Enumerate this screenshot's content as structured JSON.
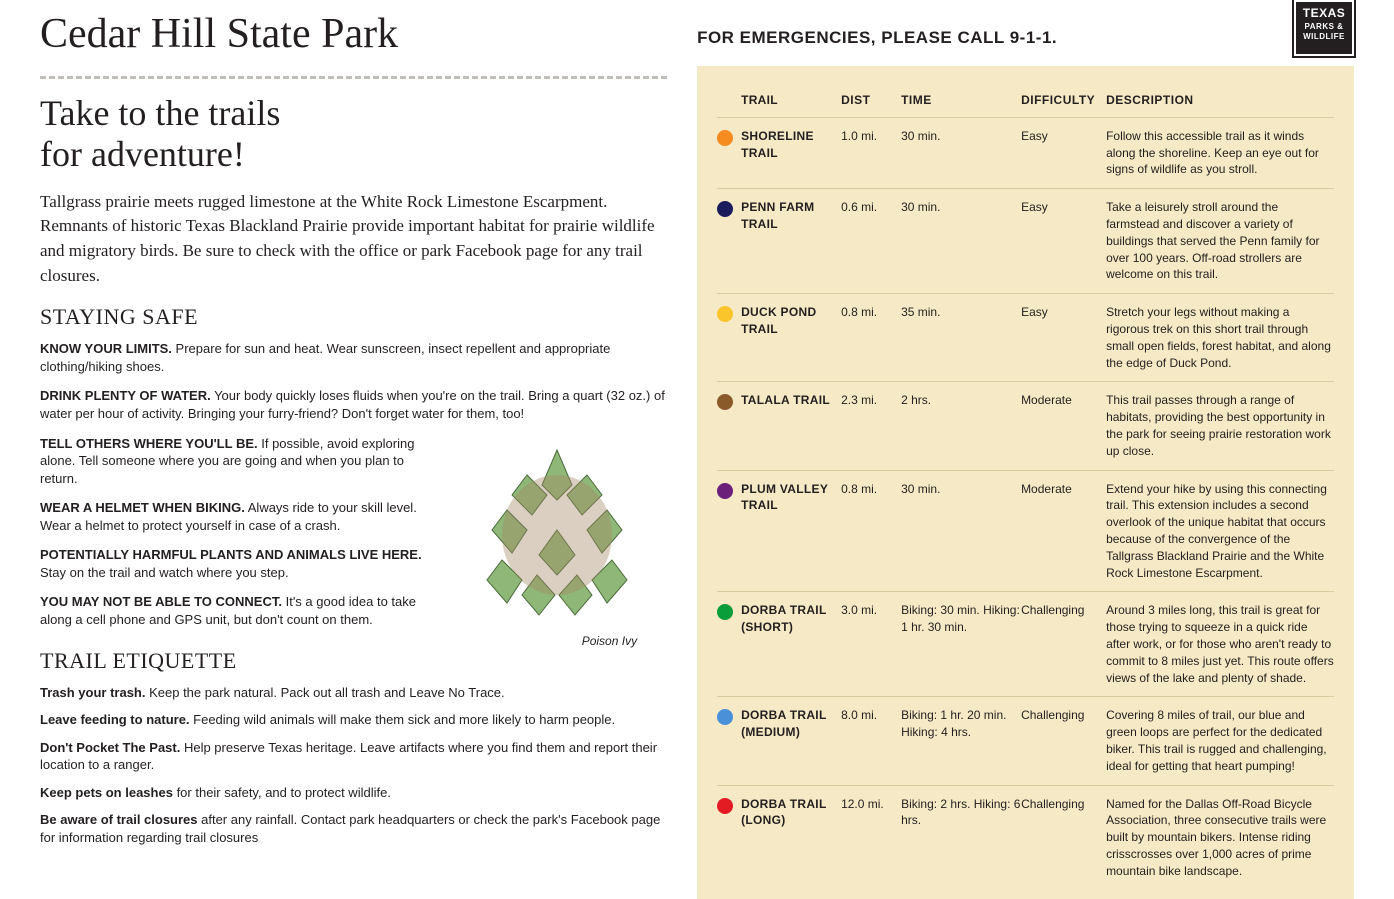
{
  "logo": {
    "line1": "TEXAS",
    "line2": "PARKS &",
    "line3": "WILDLIFE"
  },
  "park_title": "Cedar Hill State Park",
  "subtitle_line1": "Take to the trails",
  "subtitle_line2": "for adventure!",
  "intro": "Tallgrass prairie meets rugged limestone at the White Rock Limestone Escarpment. Remnants of historic Texas Blackland Prairie provide important habitat for prairie wildlife and migratory birds. Be sure to check with the office or park Facebook page for any trail closures.",
  "staying_safe_heading": "STAYING SAFE",
  "safety_items": [
    {
      "lead": "KNOW YOUR LIMITS.",
      "body": "  Prepare for sun and heat. Wear sunscreen, insect repellent and appropriate clothing/hiking shoes."
    },
    {
      "lead": "DRINK PLENTY OF WATER.",
      "body": "  Your body quickly loses fluids when you're on the trail. Bring a quart (32 oz.) of water per hour of activity. Bringing your furry-friend? Don't forget water for them, too!"
    },
    {
      "lead": "TELL OTHERS WHERE YOU'LL BE.",
      "body": "  If possible, avoid exploring alone. Tell someone where you are going and when you plan to return."
    },
    {
      "lead": "WEAR A HELMET WHEN BIKING.",
      "body": " Always ride to your skill level. Wear a helmet to protect yourself in case of a crash."
    },
    {
      "lead": "POTENTIALLY HARMFUL PLANTS AND ANIMALS LIVE HERE.",
      "body": " Stay on the trail and watch where you step."
    },
    {
      "lead": "YOU MAY NOT BE ABLE TO CONNECT.",
      "body": "  It's a good idea to take along a cell phone and GPS unit, but don't count on them."
    }
  ],
  "illustration_caption": "Poison Ivy",
  "trail_etiquette_heading": "TRAIL ETIQUETTE",
  "etiquette_items": [
    {
      "lead": "Trash your trash.",
      "body": "  Keep the park natural. Pack out all trash and Leave No Trace."
    },
    {
      "lead": "Leave feeding to nature.",
      "body": "   Feeding wild animals will make them sick and more likely to harm people."
    },
    {
      "lead": "Don't Pocket The Past.",
      "body": " Help preserve Texas heritage.  Leave artifacts where you find them and report their location to a ranger."
    },
    {
      "lead": "Keep pets on leashes",
      "body": " for their safety, and to protect wildlife."
    },
    {
      "lead": "Be aware of trail closures",
      "body": " after any rainfall. Contact park headquarters or check the park's Facebook page for information regarding trail closures"
    }
  ],
  "emergency_text": "FOR EMERGENCIES, PLEASE CALL 9-1-1.",
  "table_header": {
    "trail": "TRAIL",
    "dist": "DIST",
    "time": "TIME",
    "difficulty": "DIFFICULTY",
    "description": "DESCRIPTION"
  },
  "panel_bg": "#f6e9c5",
  "trails": [
    {
      "color": "#f68b1f",
      "name": "SHORELINE TRAIL",
      "dist": "1.0 mi.",
      "time": "30 min.",
      "diff": "Easy",
      "desc": "Follow this accessible trail as it winds along the shoreline. Keep an eye out for signs of wildlife as you stroll."
    },
    {
      "color": "#1b1c5c",
      "name": "PENN FARM TRAIL",
      "dist": "0.6 mi.",
      "time": "30 min.",
      "diff": "Easy",
      "desc": "Take a leisurely stroll around the farmstead and discover a variety of  buildings that served the Penn family for over 100 years. Off-road strollers are welcome on this trail."
    },
    {
      "color": "#f9c52b",
      "name": "DUCK POND TRAIL",
      "dist": "0.8 mi.",
      "time": "35 min.",
      "diff": "Easy",
      "desc": "Stretch your legs without making a rigorous trek on this short trail through small open fields, forest habitat, and along the edge of Duck Pond."
    },
    {
      "color": "#8b5a2b",
      "name": "TALALA TRAIL",
      "dist": "2.3 mi.",
      "time": "2 hrs.",
      "diff": "Moderate",
      "desc": "This trail passes through a range of habitats, providing the best opportunity in the park for seeing prairie restoration work up close."
    },
    {
      "color": "#6b1f7a",
      "name": "PLUM VALLEY TRAIL",
      "dist": "0.8 mi.",
      "time": "30 min.",
      "diff": "Moderate",
      "desc": "Extend your hike by using this connecting trail. This extension includes a second overlook of the unique habitat that occurs because of the convergence of the Tallgrass Blackland Prairie and the White Rock Limestone Escarpment."
    },
    {
      "color": "#0a9e3a",
      "name": "DORBA TRAIL (SHORT)",
      "dist": "3.0 mi.",
      "time": "Biking: 30 min. Hiking: 1 hr. 30 min.",
      "diff": "Challenging",
      "desc": "Around 3 miles long, this trail is great for those trying to squeeze in a quick ride after work, or for those who aren't ready to commit to 8 miles just yet. This route offers views of the lake and plenty of shade."
    },
    {
      "color": "#4a90d9",
      "name": "DORBA TRAIL (MEDIUM)",
      "dist": "8.0 mi.",
      "time": "Biking: 1 hr. 20 min. Hiking: 4 hrs.",
      "diff": "Challenging",
      "desc": "Covering 8 miles of trail, our blue and green loops are perfect for the dedicated biker. This trail is rugged and challenging, ideal for getting that heart pumping!"
    },
    {
      "color": "#e31b23",
      "name": "DORBA TRAIL (LONG)",
      "dist": "12.0 mi.",
      "time": "Biking: 2 hrs. Hiking: 6 hrs.",
      "diff": "Challenging",
      "desc": "Named for the Dallas Off-Road Bicycle Association, three consecutive trails were built by mountain bikers. Intense riding crisscrosses over 1,000 acres of prime mountain bike landscape."
    }
  ]
}
